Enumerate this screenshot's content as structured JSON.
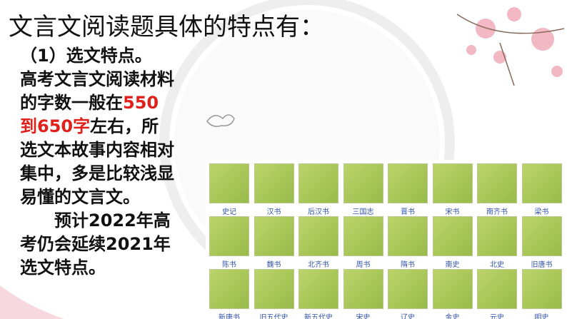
{
  "title": "文言文阅读题具体的特点有：",
  "section": {
    "heading": "（1）选文特点。",
    "paragraph1": {
      "before": "高考文言文阅读材料的字数一般在",
      "highlight": "550到650字",
      "after": "左右，所选文本故事内容相对集中，多是比较浅显易懂的文言文。"
    },
    "paragraph2": "预计2022年高考仍会延续2021年选文特点。"
  },
  "books": [
    "史记",
    "汉书",
    "后汉书",
    "三国志",
    "晋书",
    "宋书",
    "南齐书",
    "梁书",
    "陈书",
    "魏书",
    "北齐书",
    "周书",
    "隋书",
    "南史",
    "北史",
    "旧唐书",
    "新唐书",
    "旧五代史",
    "新五代史",
    "宋史",
    "辽史",
    "金史",
    "元史",
    "明史"
  ]
}
